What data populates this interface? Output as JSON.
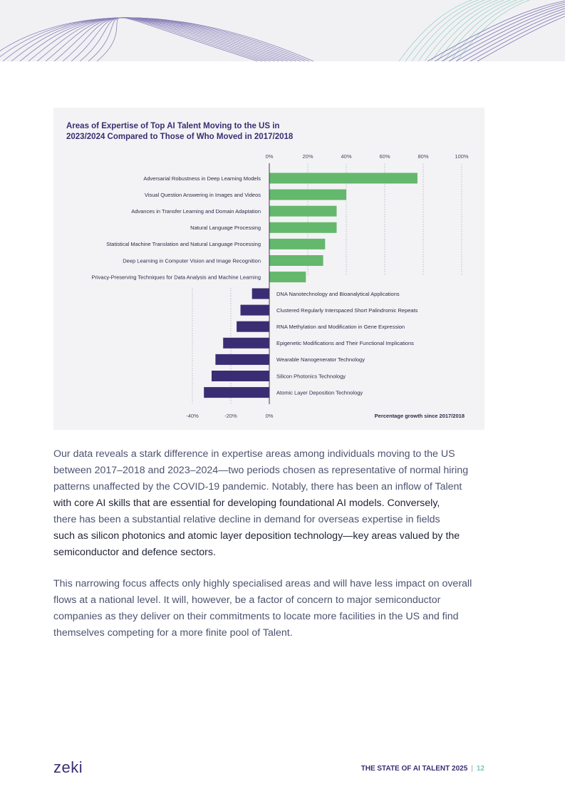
{
  "chart_data": {
    "type": "bar",
    "orientation": "horizontal",
    "title_lines": [
      "Areas of Expertise of Top AI Talent Moving to the US in",
      "2023/2024 Compared to Those of Who Moved in 2017/2018"
    ],
    "top_axis_ticks": [
      "0%",
      "20%",
      "40%",
      "60%",
      "80%",
      "100%"
    ],
    "bottom_axis_ticks": [
      "-40%",
      "-20%",
      "0%"
    ],
    "xlabel": "Percentage growth since 2017/2018",
    "xlim": [
      -40,
      100
    ],
    "grid": true,
    "colors": {
      "positive": "#64b86c",
      "negative": "#3b2d73",
      "grid": "#b8bcc8"
    },
    "series": [
      {
        "categories": [
          "Adversarial Robustness in Deep Learning Models",
          "Visual Question Answering in Images and Videos",
          "Advances in Transfer Learning and Domain Adaptation",
          "Natural Language Processing",
          "Statistical Machine Translation and Natural Language Processing",
          "Deep Learning in Computer Vision and Image Recognition",
          "Privacy-Preserving Techniques for Data Analysis and Machine Learning"
        ],
        "values": [
          77,
          40,
          35,
          35,
          29,
          28,
          19
        ]
      },
      {
        "categories": [
          "DNA Nanotechnology and Bioanalytical Applications",
          "Clustered Regularly Interspaced Short Palindromic Repeats",
          "RNA Methylation and Modification in Gene Expression",
          "Epigenetic Modifications and Their Functional Implications",
          "Wearable Nanogenerator Technology",
          "Silicon Photonics Technology",
          "Atomic Layer Deposition Technology"
        ],
        "values": [
          -9,
          -15,
          -17,
          -24,
          -28,
          -30,
          -34
        ]
      }
    ]
  },
  "body": {
    "para1": [
      "Our data reveals a stark difference in expertise areas among individuals moving to the US",
      "between 2017–2018 and 2023–2024—two periods chosen as representative of normal hiring",
      "patterns unaffected by the COVID-19 pandemic. Notably, there has been an inflow of Talent",
      "with core AI skills that are essential for developing foundational AI models. Conversely,",
      "there has been a substantial relative decline in demand for overseas expertise in fields",
      "such as silicon photonics and atomic layer deposition technology—key areas valued by the",
      "semiconductor and defence sectors."
    ],
    "para2": [
      "This narrowing focus affects only highly specialised areas and will have less impact on overall",
      "flows at a national level. It will, however, be a factor of concern to major semiconductor",
      "companies as they deliver on their commitments to locate more facilities in the US and find",
      "themselves competing for a more finite pool of Talent."
    ]
  },
  "footer": {
    "logo": "zeki",
    "report": "THE STATE OF AI TALENT 2025",
    "separator": "|",
    "page": "12"
  }
}
